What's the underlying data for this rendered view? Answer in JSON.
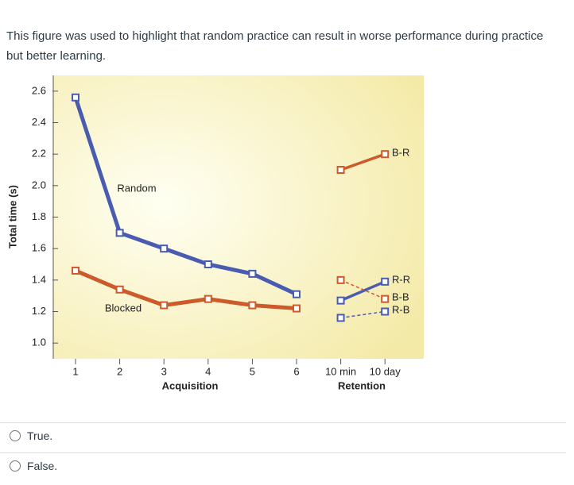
{
  "question": "This figure was used to highlight that random practice can result in worse performance during practice but better learning.",
  "chart_data": {
    "type": "line",
    "ylabel": "Total time (s)",
    "xlabels": [
      "Acquisition",
      "Retention"
    ],
    "categories": [
      "1",
      "2",
      "3",
      "4",
      "5",
      "6",
      "10 min",
      "10 day"
    ],
    "ylim": [
      0.9,
      2.7
    ],
    "yticks": [
      {
        "value": 1,
        "label": "1.0"
      },
      1.2,
      1.4,
      1.6,
      1.8,
      {
        "value": 2,
        "label": "2.0"
      },
      2.2,
      2.4,
      2.6
    ],
    "series": [
      {
        "name": "Random",
        "color": "#4a5cb0",
        "values": [
          2.56,
          1.7,
          1.6,
          1.5,
          1.44,
          1.31,
          null,
          null
        ]
      },
      {
        "name": "Blocked",
        "color": "#cc5a2a",
        "values": [
          1.46,
          1.34,
          1.24,
          1.28,
          1.24,
          1.22,
          null,
          null
        ]
      },
      {
        "name": "B-R",
        "color": "#cc5a2a",
        "values": [
          null,
          null,
          null,
          null,
          null,
          null,
          2.1,
          2.2
        ]
      },
      {
        "name": "R-R",
        "color": "#4a5cb0",
        "values": [
          null,
          null,
          null,
          null,
          null,
          null,
          1.27,
          1.39
        ]
      },
      {
        "name": "B-B",
        "color": "#cc5a2a",
        "dashed": true,
        "values": [
          null,
          null,
          null,
          null,
          null,
          null,
          1.4,
          1.28
        ]
      },
      {
        "name": "R-B",
        "color": "#4a5cb0",
        "dashed": true,
        "values": [
          null,
          null,
          null,
          null,
          null,
          null,
          1.16,
          1.2
        ]
      }
    ]
  },
  "options": [
    "True.",
    "False."
  ]
}
